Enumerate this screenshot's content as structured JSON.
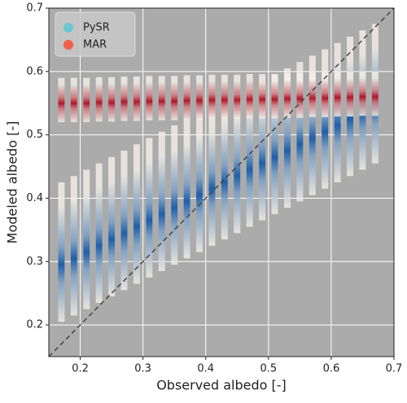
{
  "chart_data": {
    "type": "density_columns",
    "xlabel": "Observed albedo [-]",
    "ylabel": "Modeled albedo [-]",
    "xlim": [
      0.15,
      0.7
    ],
    "ylim": [
      0.15,
      0.7
    ],
    "xticks": [
      0.2,
      0.3,
      0.4,
      0.5,
      0.6,
      0.7
    ],
    "yticks": [
      0.2,
      0.3,
      0.4,
      0.5,
      0.6,
      0.7
    ],
    "grid": true,
    "legend": "upper left",
    "x": [
      0.17,
      0.19,
      0.21,
      0.23,
      0.25,
      0.27,
      0.29,
      0.31,
      0.33,
      0.35,
      0.37,
      0.39,
      0.41,
      0.43,
      0.45,
      0.47,
      0.49,
      0.51,
      0.53,
      0.55,
      0.57,
      0.59,
      0.61,
      0.63,
      0.65,
      0.67
    ],
    "series": [
      {
        "name": "PySR",
        "color": "#6cc7d2",
        "core_color": "#1f5fa8",
        "values": [
          0.295,
          0.305,
          0.315,
          0.325,
          0.335,
          0.345,
          0.355,
          0.365,
          0.375,
          0.385,
          0.395,
          0.405,
          0.415,
          0.425,
          0.435,
          0.445,
          0.455,
          0.465,
          0.475,
          0.485,
          0.495,
          0.505,
          0.515,
          0.525,
          0.535,
          0.545
        ],
        "low": [
          0.205,
          0.215,
          0.225,
          0.235,
          0.245,
          0.255,
          0.265,
          0.275,
          0.285,
          0.295,
          0.305,
          0.315,
          0.325,
          0.335,
          0.345,
          0.355,
          0.365,
          0.375,
          0.385,
          0.395,
          0.405,
          0.415,
          0.425,
          0.435,
          0.445,
          0.455
        ],
        "high": [
          0.425,
          0.435,
          0.445,
          0.455,
          0.465,
          0.475,
          0.485,
          0.495,
          0.505,
          0.515,
          0.525,
          0.535,
          0.545,
          0.555,
          0.565,
          0.575,
          0.585,
          0.595,
          0.605,
          0.615,
          0.625,
          0.635,
          0.645,
          0.655,
          0.665,
          0.675
        ]
      },
      {
        "name": "MAR",
        "color": "#f0604a",
        "core_color": "#b0182a",
        "values": [
          0.55,
          0.55,
          0.55,
          0.551,
          0.551,
          0.552,
          0.552,
          0.553,
          0.553,
          0.553,
          0.554,
          0.554,
          0.555,
          0.555,
          0.555,
          0.556,
          0.556,
          0.556,
          0.557,
          0.557,
          0.558,
          0.558,
          0.559,
          0.559,
          0.56,
          0.56
        ],
        "low": [
          0.52,
          0.52,
          0.52,
          0.521,
          0.521,
          0.522,
          0.522,
          0.523,
          0.523,
          0.523,
          0.524,
          0.524,
          0.525,
          0.525,
          0.525,
          0.526,
          0.526,
          0.526,
          0.527,
          0.527,
          0.528,
          0.528,
          0.529,
          0.529,
          0.53,
          0.53
        ],
        "high": [
          0.59,
          0.59,
          0.59,
          0.591,
          0.591,
          0.592,
          0.592,
          0.593,
          0.593,
          0.593,
          0.594,
          0.594,
          0.595,
          0.595,
          0.595,
          0.596,
          0.596,
          0.596,
          0.597,
          0.597,
          0.598,
          0.598,
          0.599,
          0.599,
          0.6,
          0.6
        ]
      }
    ]
  }
}
